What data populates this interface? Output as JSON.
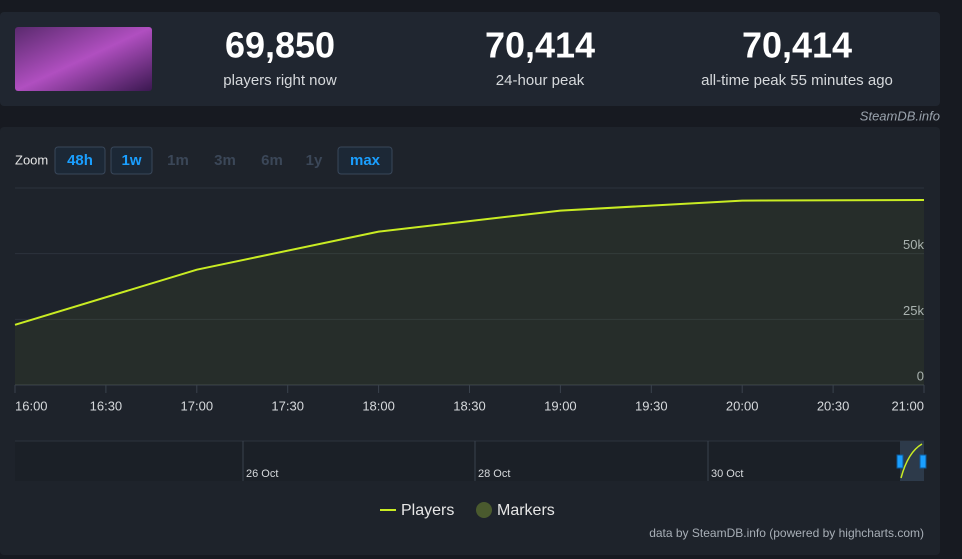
{
  "header": {
    "stats": [
      {
        "value": "69,850",
        "label": "players right now"
      },
      {
        "value": "70,414",
        "label": "24-hour peak"
      },
      {
        "value": "70,414",
        "label": "all-time peak 55 minutes ago"
      }
    ],
    "source": "SteamDB.info"
  },
  "zoom": {
    "label": "Zoom",
    "buttons": [
      "48h",
      "1w",
      "1m",
      "3m",
      "6m",
      "1y",
      "max"
    ]
  },
  "chart_data": {
    "type": "line",
    "x": [
      "16:00",
      "17:00",
      "18:00",
      "19:00",
      "20:00",
      "21:00"
    ],
    "xticks": [
      "16:00",
      "16:30",
      "17:00",
      "17:30",
      "18:00",
      "18:30",
      "19:00",
      "19:30",
      "20:00",
      "20:30",
      "21:00"
    ],
    "series": [
      {
        "name": "Players",
        "color": "#c9ec23",
        "values": [
          22900,
          43900,
          58400,
          66400,
          70200,
          70414
        ]
      }
    ],
    "markers": {
      "name": "Markers",
      "color": "#4a5a2e"
    },
    "ylim": [
      0,
      75000
    ],
    "yticks": [
      {
        "value": 0,
        "label": "0"
      },
      {
        "value": 25000,
        "label": "25k"
      },
      {
        "value": 50000,
        "label": "50k"
      }
    ],
    "grid": true
  },
  "navigator": {
    "labels": [
      "26 Oct",
      "28 Oct",
      "30 Oct"
    ]
  },
  "credits": "data by SteamDB.info (powered by highcharts.com)"
}
